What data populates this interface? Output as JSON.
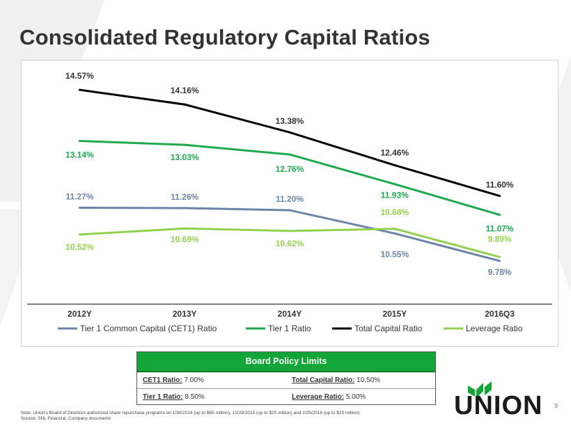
{
  "title": "Consolidated Regulatory Capital Ratios",
  "chart_data": {
    "type": "line",
    "categories": [
      "2012Y",
      "2013Y",
      "2014Y",
      "2015Y",
      "2016Q3"
    ],
    "ylim": [
      9,
      15
    ],
    "series": [
      {
        "name": "Tier 1 Common Capital (CET1) Ratio",
        "color": "#6b84a8",
        "values": [
          11.27,
          11.26,
          11.2,
          10.55,
          9.78
        ],
        "labels": [
          "11.27%",
          "11.26%",
          "11.20%",
          "10.55%",
          "9.78%"
        ]
      },
      {
        "name": "Tier 1 Ratio",
        "color": "#1fa94f",
        "values": [
          13.14,
          13.03,
          12.76,
          11.93,
          11.07
        ],
        "labels": [
          "13.14%",
          "13.03%",
          "12.76%",
          "11.93%",
          "11.07%"
        ]
      },
      {
        "name": "Total Capital Ratio",
        "color": "#000000",
        "values": [
          14.57,
          14.16,
          13.38,
          12.46,
          11.6
        ],
        "labels": [
          "14.57%",
          "14.16%",
          "13.38%",
          "12.46%",
          "11.60%"
        ]
      },
      {
        "name": "Leverage Ratio",
        "color": "#92d050",
        "values": [
          10.52,
          10.69,
          10.62,
          10.68,
          9.89
        ],
        "labels": [
          "10.52%",
          "10.69%",
          "10.62%",
          "10.68%",
          "9.89%"
        ]
      }
    ],
    "legend_position": "bottom"
  },
  "policy": {
    "heading": "Board Policy Limits",
    "cet1_label": "CET1 Ratio:",
    "cet1_value": "7.00%",
    "total_label": "Total Capital Ratio:",
    "total_value": "10.50%",
    "tier1_label": "Tier 1 Ratio:",
    "tier1_value": "8.50%",
    "leverage_label": "Leverage Ratio:",
    "leverage_value": "5.00%"
  },
  "footnote": {
    "note": "Note: Union's Board of Directors authorized share repurchase programs on 1/30/2014  (up to $65 million), 10/29/2015  (up to $25 million) and 2/25/2016  (up to $25 million)",
    "source": "Source:  SNL Financial, Company documents"
  },
  "logo_text": "UNION",
  "page_number": "9",
  "colors": {
    "accent_green": "#13a538",
    "title": "#333333"
  }
}
